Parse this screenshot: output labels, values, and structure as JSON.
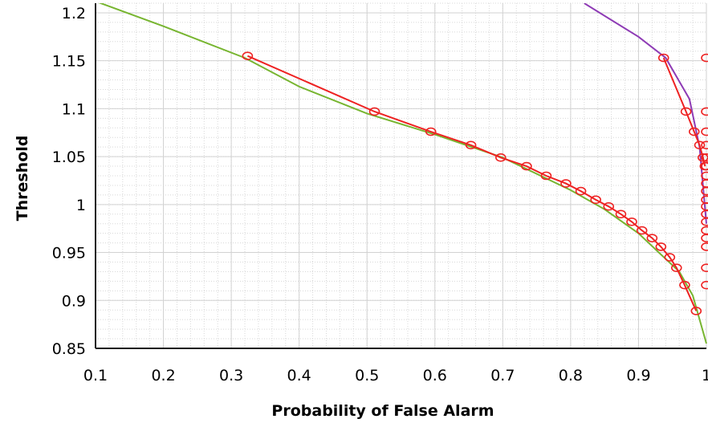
{
  "chart_data": {
    "type": "line",
    "title": "",
    "xlabel": "Probability of False Alarm",
    "ylabel": "Threshold",
    "xlim": [
      0.1,
      1.0
    ],
    "ylim": [
      0.85,
      1.21
    ],
    "x_ticks": [
      "0.1",
      "0.2",
      "0.3",
      "0.4",
      "0.5",
      "0.6",
      "0.7",
      "0.8",
      "0.9",
      "1"
    ],
    "y_ticks": [
      "0.85",
      "0.9",
      "0.95",
      "1",
      "1.05",
      "1.1",
      "1.15",
      "1.2"
    ],
    "grid": true,
    "legend": "none",
    "series": [
      {
        "color": "#77b530",
        "style": "line",
        "x": [
          0.1,
          0.2,
          0.32,
          0.4,
          0.5,
          0.6,
          0.7,
          0.8,
          0.85,
          0.9,
          0.93,
          0.96,
          0.98,
          1.0
        ],
        "y": [
          1.212,
          1.186,
          1.153,
          1.123,
          1.095,
          1.073,
          1.049,
          1.015,
          0.995,
          0.97,
          0.95,
          0.93,
          0.905,
          0.855
        ]
      },
      {
        "color": "#ee2222",
        "style": "line+circle",
        "x": [
          0.324,
          0.511,
          0.594,
          0.653,
          0.697,
          0.735,
          0.764,
          0.793,
          0.815,
          0.837,
          0.856,
          0.874,
          0.89,
          0.905,
          0.92,
          0.933,
          0.946,
          0.956,
          0.968,
          0.985
        ],
        "y": [
          1.155,
          1.097,
          1.076,
          1.062,
          1.049,
          1.04,
          1.03,
          1.022,
          1.014,
          1.005,
          0.998,
          0.99,
          0.982,
          0.973,
          0.965,
          0.956,
          0.945,
          0.934,
          0.916,
          0.889
        ]
      },
      {
        "color": "#8e3bb5",
        "style": "line",
        "x": [
          0.82,
          0.9,
          0.94,
          0.975,
          0.99,
          1.0
        ],
        "y": [
          1.21,
          1.175,
          1.153,
          1.11,
          1.06,
          0.98
        ]
      },
      {
        "color": "#ee2222",
        "style": "line+circle",
        "x": [
          0.937,
          0.97,
          0.982,
          0.99,
          0.995,
          0.998
        ],
        "y": [
          1.153,
          1.097,
          1.076,
          1.062,
          1.049,
          1.04
        ]
      },
      {
        "color": "#ee2222",
        "style": "circle",
        "x": [
          1.0,
          1.0,
          1.0,
          1.0,
          1.0,
          1.0,
          1.0,
          1.0,
          1.0,
          1.0,
          1.0,
          1.0,
          1.0,
          1.0,
          1.0,
          1.0,
          1.0,
          1.0
        ],
        "y": [
          1.153,
          1.097,
          1.076,
          1.062,
          1.049,
          1.04,
          1.03,
          1.022,
          1.014,
          1.005,
          0.998,
          0.99,
          0.982,
          0.973,
          0.965,
          0.956,
          0.934,
          0.916
        ]
      }
    ]
  }
}
